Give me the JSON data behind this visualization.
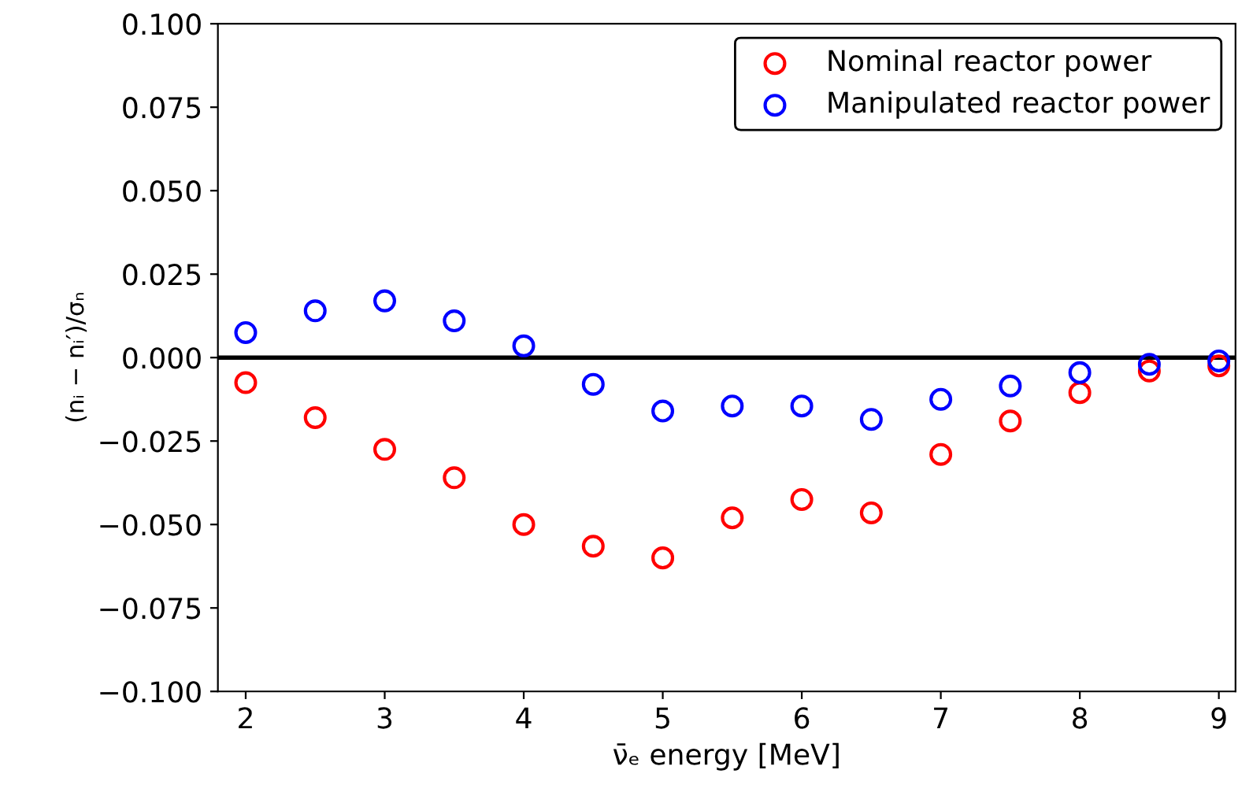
{
  "chart_data": {
    "type": "scatter",
    "xlabel": "ν̄ₑ energy [MeV]",
    "ylabel": "(nᵢ − nᵢ′)/σₙ",
    "x": [
      2,
      2.5,
      3,
      3.5,
      4,
      4.5,
      5,
      5.5,
      6,
      6.5,
      7,
      7.5,
      8,
      8.5,
      9
    ],
    "series": [
      {
        "name": "Nominal reactor power",
        "color": "#ff0000",
        "values": [
          -0.0075,
          -0.018,
          -0.0275,
          -0.036,
          -0.05,
          -0.0565,
          -0.06,
          -0.048,
          -0.0425,
          -0.0465,
          -0.029,
          -0.019,
          -0.0105,
          -0.004,
          -0.0025
        ]
      },
      {
        "name": "Manipulated reactor power",
        "color": "#0000ff",
        "values": [
          0.0075,
          0.014,
          0.017,
          0.011,
          0.0035,
          -0.008,
          -0.016,
          -0.0145,
          -0.0145,
          -0.0185,
          -0.0125,
          -0.0085,
          -0.0045,
          -0.002,
          -0.001
        ]
      }
    ],
    "xlim": [
      1.8,
      9.12
    ],
    "xticks": [
      2,
      3,
      4,
      5,
      6,
      7,
      8,
      9
    ],
    "ylim": [
      -0.1,
      0.1
    ],
    "yticks": [
      {
        "value": -0.1,
        "label": "−0.100"
      },
      {
        "value": -0.075,
        "label": "−0.075"
      },
      {
        "value": -0.05,
        "label": "−0.050"
      },
      {
        "value": -0.025,
        "label": "−0.025"
      },
      {
        "value": 0,
        "label": "0.000"
      },
      {
        "value": 0.025,
        "label": "0.025"
      },
      {
        "value": 0.05,
        "label": "0.050"
      },
      {
        "value": 0.075,
        "label": "0.075"
      },
      {
        "value": 0.1,
        "label": "0.100"
      }
    ],
    "ref_lines": [
      {
        "axis": "y",
        "value": 0,
        "color": "#000000",
        "line_style": "solid"
      }
    ],
    "marker": "circle",
    "legend": "top right",
    "grid": false
  }
}
